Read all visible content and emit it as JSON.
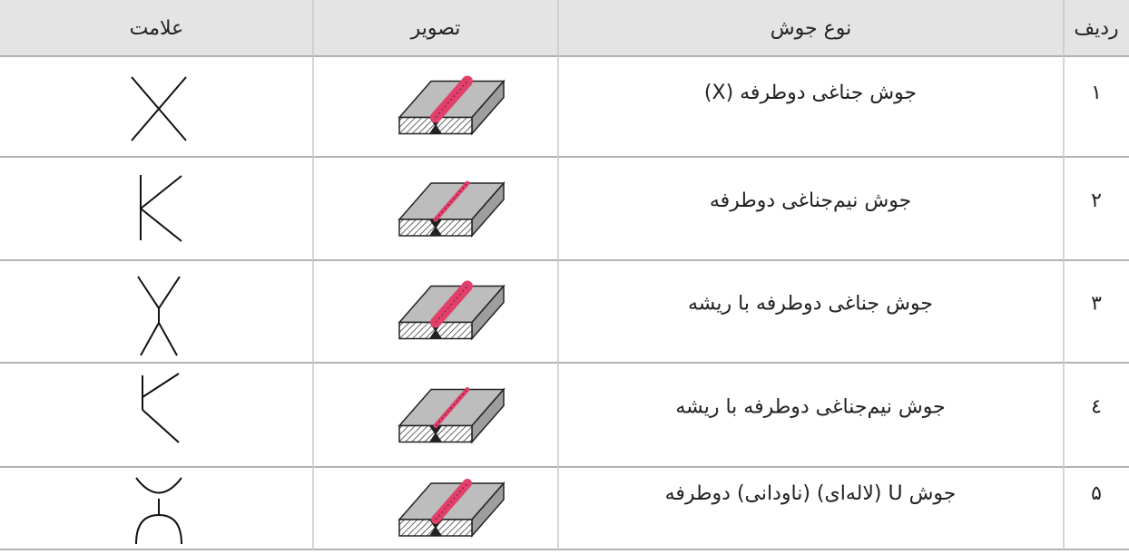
{
  "table": {
    "header": [
      "ردیف",
      "نوع جوش",
      "تصویر",
      "علامت"
    ],
    "rows": [
      [
        "۱",
        "جوش جناغی دوطرفه (X)"
      ],
      [
        "۲",
        "جوش نیم‌جناغی دوطرفه"
      ],
      [
        "۳",
        "جوش جناغی دوطرفه با ریشه"
      ],
      [
        "٤",
        "جوش نیم‌جناغی دوطرفه با ریشه"
      ],
      [
        "۵",
        "جوش U (لاله‌ای) (ناودانی) دوطرفه"
      ]
    ]
  }
}
